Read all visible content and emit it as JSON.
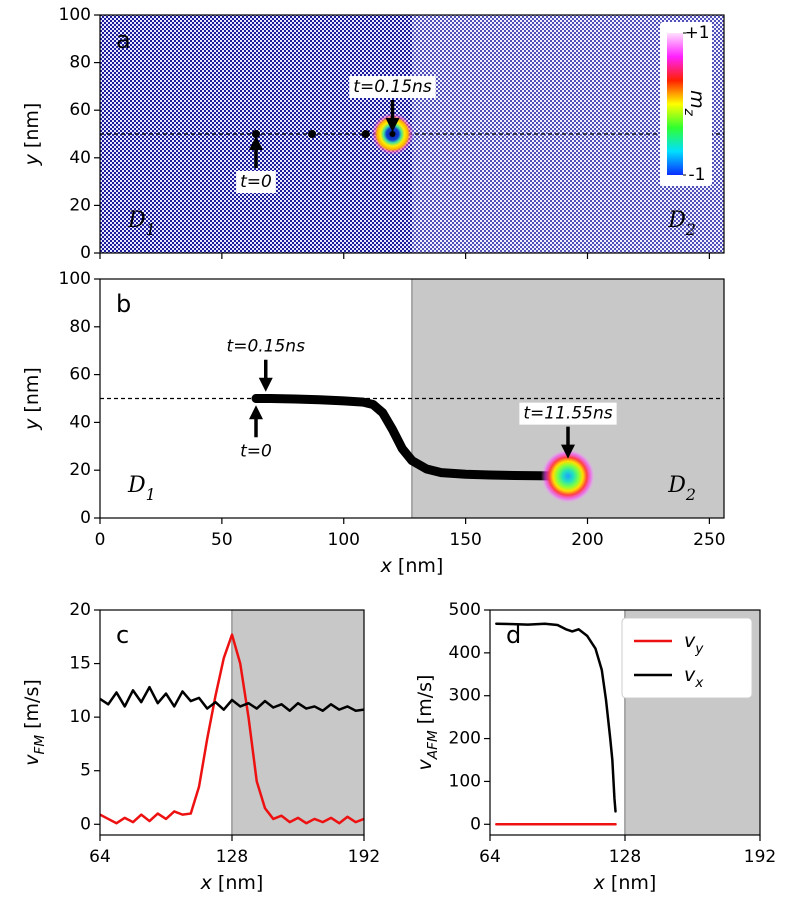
{
  "chart_data": [
    {
      "type": "image",
      "panel": "a",
      "xlim": [
        0,
        256
      ],
      "ylim": [
        0,
        100
      ],
      "xticks": [
        0,
        50,
        100,
        150,
        200,
        250
      ],
      "xtick_labels": false,
      "yticks": [
        0,
        20,
        40,
        60,
        80,
        100
      ],
      "ylabel": {
        "text": "y",
        "unit": "[nm]"
      },
      "boundary_x": 128,
      "reference_y": 50,
      "points": {
        "x": [
          64,
          87,
          109
        ],
        "y": [
          50,
          50,
          50
        ]
      },
      "skyrmion": {
        "x": 120,
        "y": 50
      },
      "annotations": [
        {
          "text": "t=0",
          "x": 64,
          "y": 50,
          "arrow": "up"
        },
        {
          "text": "t=0.15ns",
          "x": 120,
          "y": 50,
          "arrow": "down"
        }
      ],
      "domains": [
        {
          "text": "D",
          "sub": "1",
          "corner": "lower left"
        },
        {
          "text": "D",
          "sub": "2",
          "corner": "lower right"
        }
      ],
      "colorbar": {
        "label": {
          "text": "m",
          "sub": "z"
        },
        "ticks": [
          {
            "value": 1,
            "label": "+1"
          },
          {
            "value": -1,
            "label": "-1"
          }
        ],
        "colors": [
          "#0a2cff",
          "#00e0ff",
          "#30ff30",
          "#ffff00",
          "#ff2000",
          "#ff20ff",
          "#ffe0ff"
        ]
      }
    },
    {
      "type": "line",
      "panel": "b",
      "xlim": [
        0,
        256
      ],
      "ylim": [
        0,
        100
      ],
      "xticks": [
        0,
        50,
        100,
        150,
        200,
        250
      ],
      "yticks": [
        0,
        20,
        40,
        60,
        80,
        100
      ],
      "xlabel": {
        "text": "x",
        "unit": "[nm]"
      },
      "ylabel": {
        "text": "y",
        "unit": "[nm]"
      },
      "shade_from": 128,
      "reference_y": 50,
      "series": [
        {
          "color": "#000000",
          "x": [
            64,
            70,
            80,
            90,
            100,
            108,
            112,
            116,
            120,
            124,
            128,
            134,
            140,
            150,
            160,
            170,
            180,
            192
          ],
          "values": [
            50,
            50,
            49.8,
            49.5,
            49,
            48.5,
            47.5,
            44,
            37,
            29,
            24,
            20.5,
            19,
            18.3,
            18,
            17.8,
            17.7,
            17.5
          ]
        }
      ],
      "skyrmion": {
        "x": 192,
        "y": 17.5
      },
      "annotations": [
        {
          "text": "t=0.15ns",
          "x": 68,
          "y": 52,
          "arrow": "down"
        },
        {
          "text": "t=0",
          "x": 64,
          "y": 48,
          "arrow": "up"
        },
        {
          "text": "t=11.55ns",
          "x": 192,
          "y": 24,
          "arrow": "down"
        }
      ],
      "domains": [
        {
          "text": "D",
          "sub": "1",
          "corner": "lower left"
        },
        {
          "text": "D",
          "sub": "2",
          "corner": "lower right"
        }
      ]
    },
    {
      "type": "line",
      "panel": "c",
      "xlim": [
        64,
        192
      ],
      "ylim": [
        -1,
        20
      ],
      "xticks": [
        64,
        128,
        192
      ],
      "yticks": [
        0,
        5,
        10,
        15,
        20
      ],
      "xlabel": {
        "text": "x",
        "unit": "[nm]"
      },
      "ylabel": {
        "text": "v",
        "sub": "FM",
        "unit": "[m/s]"
      },
      "shade_from": 128,
      "series": [
        {
          "color": "#ee1111",
          "x": [
            64,
            68,
            72,
            76,
            80,
            84,
            88,
            92,
            96,
            100,
            104,
            108,
            112,
            116,
            120,
            124,
            128,
            132,
            136,
            140,
            144,
            148,
            152,
            156,
            160,
            164,
            168,
            172,
            176,
            180,
            184,
            188,
            192
          ],
          "values": [
            0.9,
            0.5,
            0.1,
            0.6,
            0.2,
            0.9,
            0.3,
            1.0,
            0.5,
            1.2,
            0.9,
            1.0,
            3.5,
            8,
            12,
            15.5,
            17.7,
            15,
            10,
            4,
            1.5,
            0.5,
            0.8,
            0.2,
            0.6,
            0.1,
            0.5,
            0.2,
            0.6,
            0.1,
            0.7,
            0.2,
            0.5
          ]
        },
        {
          "color": "#000000",
          "x": [
            64,
            68,
            72,
            76,
            80,
            84,
            88,
            92,
            96,
            100,
            104,
            108,
            112,
            116,
            120,
            124,
            128,
            132,
            136,
            140,
            144,
            148,
            152,
            156,
            160,
            164,
            168,
            172,
            176,
            180,
            184,
            188,
            192
          ],
          "values": [
            11.7,
            11.2,
            12.3,
            11.0,
            12.5,
            11.4,
            12.8,
            11.3,
            12.2,
            11.0,
            12.4,
            11.5,
            11.8,
            10.8,
            11.4,
            10.7,
            11.6,
            11.0,
            11.3,
            10.8,
            11.5,
            10.9,
            11.2,
            10.6,
            11.3,
            10.8,
            11.0,
            10.6,
            11.2,
            10.7,
            11.0,
            10.6,
            10.7
          ]
        }
      ]
    },
    {
      "type": "line",
      "panel": "d",
      "xlim": [
        64,
        192
      ],
      "ylim": [
        -25,
        500
      ],
      "xticks": [
        64,
        128,
        192
      ],
      "yticks": [
        0,
        100,
        200,
        300,
        400,
        500
      ],
      "xlabel": {
        "text": "x",
        "unit": "[nm]"
      },
      "ylabel": {
        "text": "v",
        "sub": "AFM",
        "unit": "[m/s]"
      },
      "shade_from": 128,
      "legend": "upper right",
      "series": [
        {
          "name": "v",
          "sub": "y",
          "color": "#ee1111",
          "x": [
            67,
            123.5
          ],
          "values": [
            0,
            0
          ]
        },
        {
          "name": "v",
          "sub": "x",
          "color": "#000000",
          "x": [
            67,
            75,
            82,
            90,
            96,
            100,
            103,
            106,
            110,
            114,
            117,
            119,
            121,
            122,
            123,
            123.5
          ],
          "values": [
            468,
            467,
            466,
            468,
            465,
            455,
            450,
            455,
            440,
            410,
            360,
            290,
            200,
            150,
            60,
            30
          ]
        }
      ]
    }
  ]
}
